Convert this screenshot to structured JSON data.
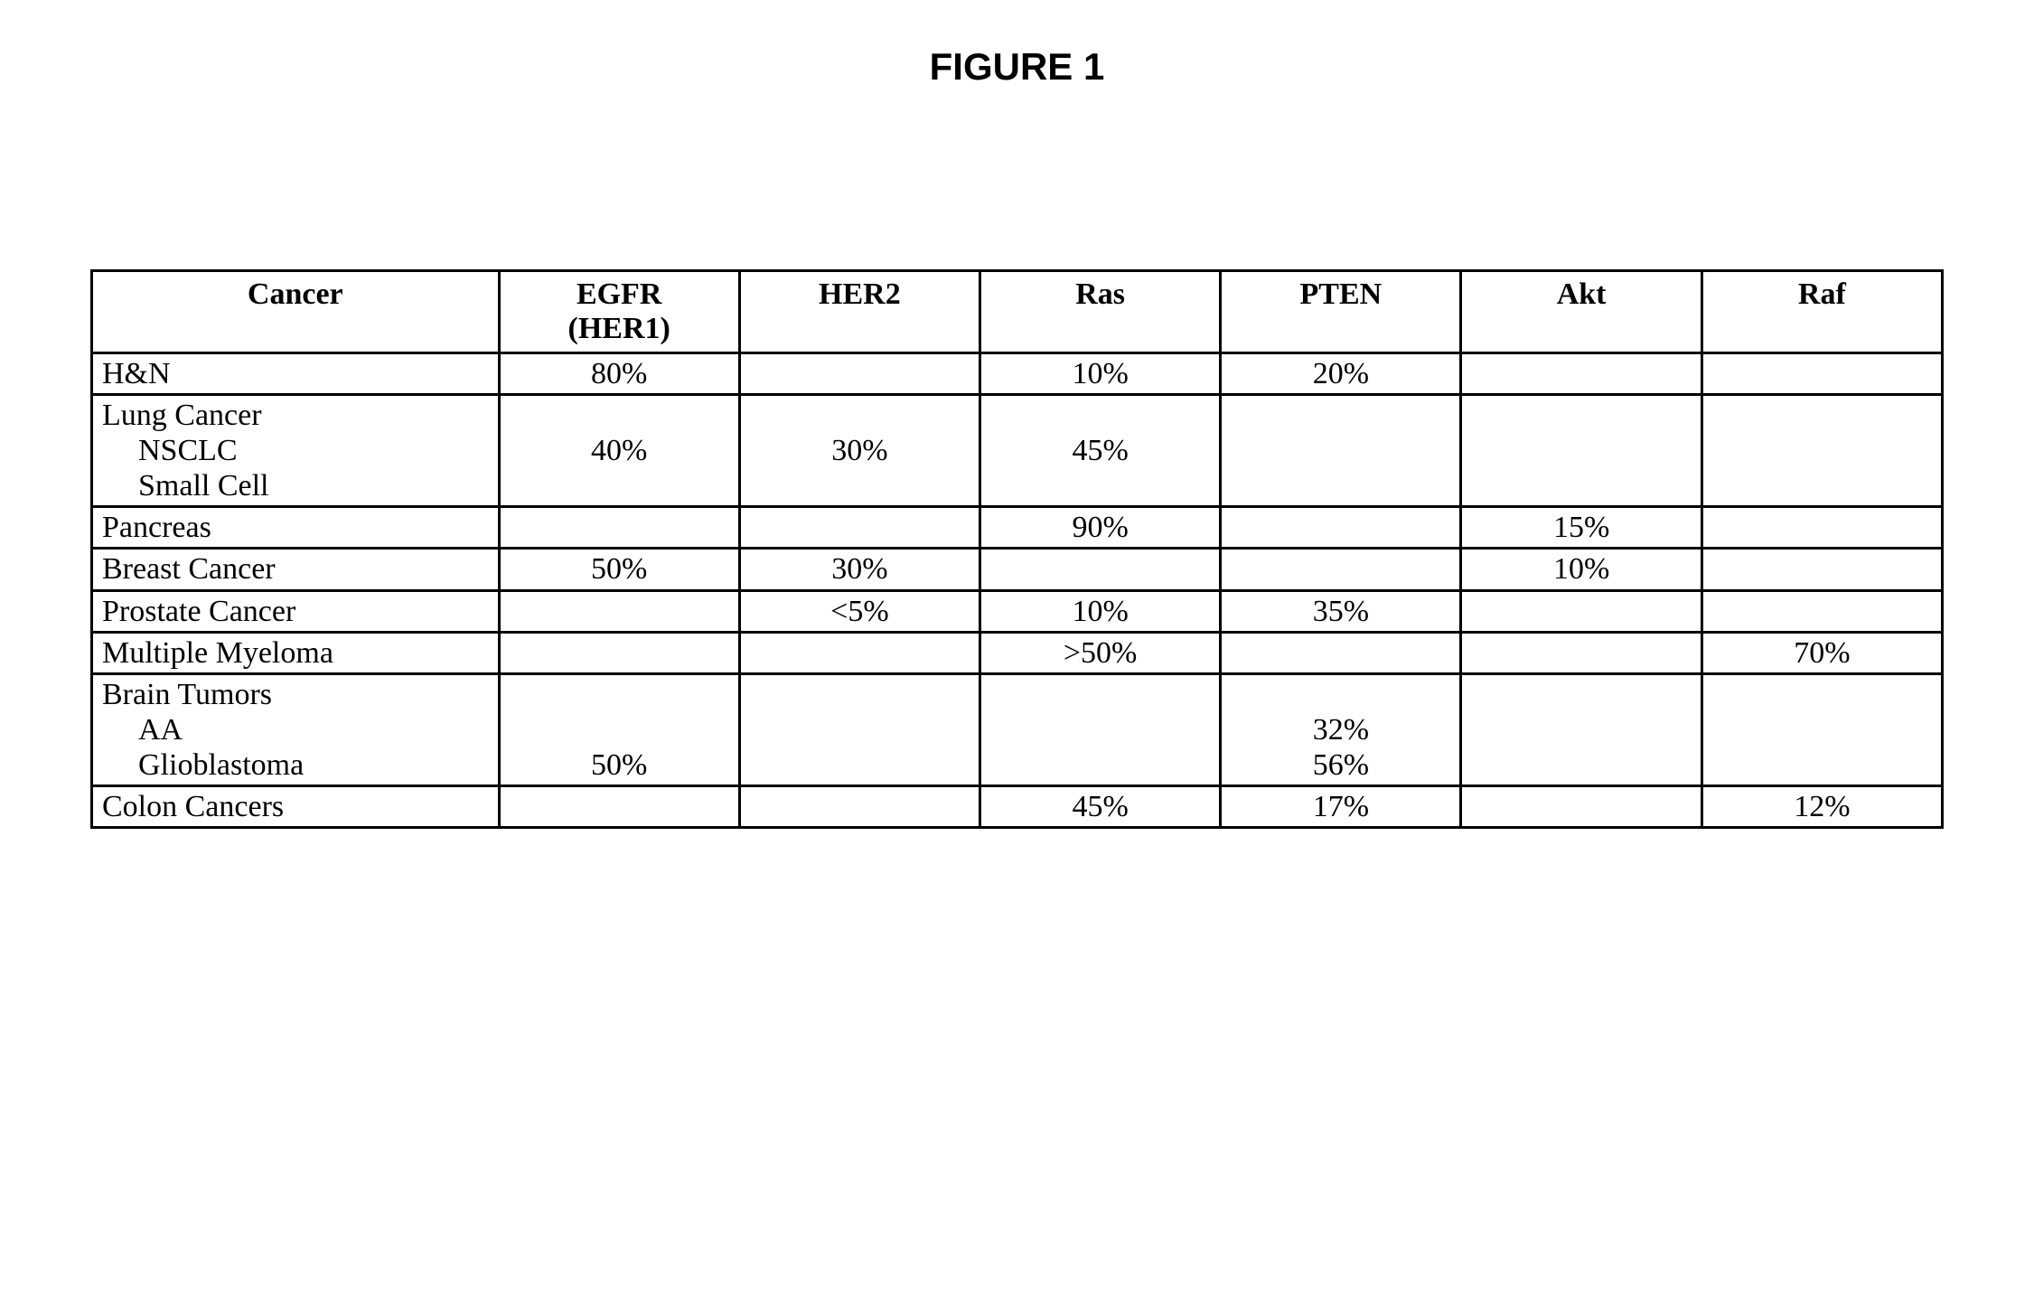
{
  "figure": {
    "title": "FIGURE 1",
    "title_fontsize": 42,
    "title_font": "Arial",
    "background_color": "#ffffff",
    "text_color": "#000000",
    "border_color": "#000000",
    "cell_fontsize": 34,
    "cell_font": "Times New Roman",
    "columns": [
      {
        "header": "Cancer",
        "subheader": ""
      },
      {
        "header": "EGFR",
        "subheader": "(HER1)"
      },
      {
        "header": "HER2",
        "subheader": ""
      },
      {
        "header": "Ras",
        "subheader": ""
      },
      {
        "header": "PTEN",
        "subheader": ""
      },
      {
        "header": "Akt",
        "subheader": ""
      },
      {
        "header": "Raf",
        "subheader": ""
      }
    ],
    "rows": [
      {
        "cancer": {
          "lines": [
            "H&N"
          ]
        },
        "egfr": "80%",
        "her2": "",
        "ras": "10%",
        "pten": "20%",
        "akt": "",
        "raf": ""
      },
      {
        "cancer": {
          "lines": [
            "Lung Cancer",
            "NSCLC",
            "Small Cell"
          ],
          "indent_from": 1
        },
        "egfr": "40%",
        "her2": "30%",
        "ras": "45%",
        "pten": "",
        "akt": "",
        "raf": ""
      },
      {
        "cancer": {
          "lines": [
            "Pancreas"
          ]
        },
        "egfr": "",
        "her2": "",
        "ras": "90%",
        "pten": "",
        "akt": "15%",
        "raf": ""
      },
      {
        "cancer": {
          "lines": [
            "Breast Cancer"
          ]
        },
        "egfr": "50%",
        "her2": "30%",
        "ras": "",
        "pten": "",
        "akt": "10%",
        "raf": ""
      },
      {
        "cancer": {
          "lines": [
            "Prostate Cancer"
          ]
        },
        "egfr": "",
        "her2": "<5%",
        "ras": "10%",
        "pten": "35%",
        "akt": "",
        "raf": ""
      },
      {
        "cancer": {
          "lines": [
            "Multiple Myeloma"
          ]
        },
        "egfr": "",
        "her2": "",
        "ras": ">50%",
        "pten": "",
        "akt": "",
        "raf": "70%"
      },
      {
        "cancer": {
          "lines": [
            "Brain Tumors",
            "AA",
            "Glioblastoma"
          ],
          "indent_from": 1
        },
        "egfr": "50%",
        "her2": "",
        "ras": "",
        "pten_lines": [
          "",
          "32%",
          "56%"
        ],
        "pten": "",
        "akt": "",
        "raf": "",
        "egfr_valign": "bottom"
      },
      {
        "cancer": {
          "lines": [
            "Colon Cancers"
          ]
        },
        "egfr": "",
        "her2": "",
        "ras": "45%",
        "pten": "17%",
        "akt": "",
        "raf": "12%"
      }
    ]
  }
}
